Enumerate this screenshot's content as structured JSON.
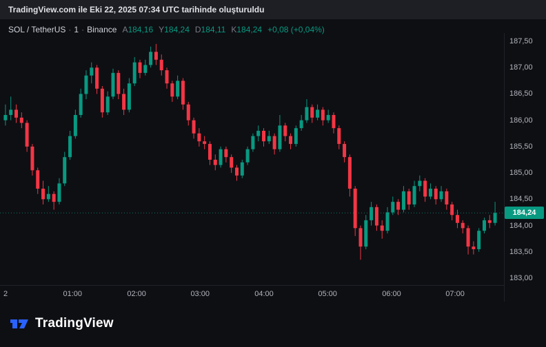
{
  "attribution": {
    "text": "TradingView.com ile Eki 22, 2025 07:34 UTC tarihinde oluşturuldu"
  },
  "header": {
    "symbol": "SOL / TetherUS",
    "separator": "·",
    "interval": "1",
    "exchange": "Binance",
    "ohlc": [
      {
        "key": "A",
        "value": "184,16"
      },
      {
        "key": "Y",
        "value": "184,24"
      },
      {
        "key": "D",
        "value": "184,11"
      },
      {
        "key": "K",
        "value": "184,24"
      }
    ],
    "change": "+0,08 (+0,04%)"
  },
  "footer": {
    "brand": "TradingView"
  },
  "colors": {
    "up": "#089981",
    "down": "#F23645",
    "axis_text": "#B2B5BE",
    "badge_bg": "#089981",
    "accent_blue": "#2962FF"
  },
  "chart_data": {
    "type": "candlestick",
    "title": "SOL / TetherUS · 1 · Binance",
    "symbol": "SOL/USDT",
    "exchange": "Binance",
    "interval": "1 minute (shown aggregated ~5m per candle)",
    "grid": false,
    "ylim": [
      183.0,
      187.5
    ],
    "price_ticks": [
      "187,50",
      "187,00",
      "186,50",
      "186,00",
      "185,50",
      "185,00",
      "184,50",
      "184,00",
      "183,50",
      "183,00"
    ],
    "price_tick_values": [
      187.5,
      187.0,
      186.5,
      186.0,
      185.5,
      185.0,
      184.5,
      184.0,
      183.5,
      183.0
    ],
    "time_ticks": [
      {
        "label": "2",
        "pos": 0.011
      },
      {
        "label": "01:00",
        "pos": 0.144
      },
      {
        "label": "02:00",
        "pos": 0.271
      },
      {
        "label": "03:00",
        "pos": 0.397
      },
      {
        "label": "04:00",
        "pos": 0.524
      },
      {
        "label": "05:00",
        "pos": 0.65
      },
      {
        "label": "06:00",
        "pos": 0.777
      },
      {
        "label": "07:00",
        "pos": 0.903
      }
    ],
    "last_price": 184.24,
    "last_price_label": "184,24",
    "candles": [
      [
        186.0,
        186.3,
        185.9,
        186.1
      ],
      [
        186.1,
        186.45,
        186.0,
        186.2
      ],
      [
        186.2,
        186.3,
        185.95,
        186.05
      ],
      [
        186.05,
        186.15,
        185.85,
        185.95
      ],
      [
        185.95,
        186.0,
        185.4,
        185.5
      ],
      [
        185.5,
        185.55,
        184.95,
        185.05
      ],
      [
        185.05,
        185.1,
        184.6,
        184.7
      ],
      [
        184.7,
        184.85,
        184.4,
        184.5
      ],
      [
        184.5,
        184.75,
        184.45,
        184.6
      ],
      [
        184.6,
        184.65,
        184.3,
        184.45
      ],
      [
        184.45,
        184.9,
        184.4,
        184.8
      ],
      [
        184.8,
        185.4,
        184.75,
        185.3
      ],
      [
        185.3,
        185.8,
        185.25,
        185.7
      ],
      [
        185.7,
        186.2,
        185.65,
        186.1
      ],
      [
        186.1,
        186.6,
        186.05,
        186.5
      ],
      [
        186.5,
        186.95,
        186.4,
        186.85
      ],
      [
        186.85,
        187.1,
        186.7,
        187.0
      ],
      [
        187.0,
        187.05,
        186.5,
        186.6
      ],
      [
        186.6,
        186.65,
        186.05,
        186.15
      ],
      [
        186.15,
        186.55,
        186.1,
        186.45
      ],
      [
        186.45,
        186.98,
        186.4,
        186.9
      ],
      [
        186.9,
        186.95,
        186.4,
        186.5
      ],
      [
        186.5,
        186.6,
        186.1,
        186.2
      ],
      [
        186.2,
        186.8,
        186.15,
        186.7
      ],
      [
        186.7,
        187.2,
        186.65,
        187.1
      ],
      [
        187.1,
        187.15,
        186.8,
        186.9
      ],
      [
        186.9,
        187.15,
        186.85,
        187.05
      ],
      [
        187.05,
        187.4,
        187.0,
        187.3
      ],
      [
        187.3,
        187.45,
        187.05,
        187.15
      ],
      [
        187.15,
        187.25,
        186.85,
        186.95
      ],
      [
        186.95,
        187.0,
        186.6,
        186.7
      ],
      [
        186.7,
        186.75,
        186.35,
        186.45
      ],
      [
        186.45,
        186.85,
        186.4,
        186.75
      ],
      [
        186.75,
        186.8,
        186.2,
        186.3
      ],
      [
        186.3,
        186.35,
        185.9,
        186.0
      ],
      [
        186.0,
        186.05,
        185.65,
        185.75
      ],
      [
        185.75,
        185.85,
        185.5,
        185.6
      ],
      [
        185.6,
        185.7,
        185.45,
        185.55
      ],
      [
        185.55,
        185.6,
        185.15,
        185.25
      ],
      [
        185.25,
        185.35,
        185.05,
        185.15
      ],
      [
        185.15,
        185.5,
        185.1,
        185.45
      ],
      [
        185.45,
        185.5,
        185.2,
        185.3
      ],
      [
        185.3,
        185.35,
        185.0,
        185.1
      ],
      [
        185.1,
        185.15,
        184.85,
        184.95
      ],
      [
        184.95,
        185.25,
        184.9,
        185.2
      ],
      [
        185.2,
        185.5,
        185.15,
        185.45
      ],
      [
        185.45,
        185.75,
        185.4,
        185.7
      ],
      [
        185.7,
        185.9,
        185.6,
        185.8
      ],
      [
        185.8,
        185.85,
        185.5,
        185.6
      ],
      [
        185.6,
        185.8,
        185.55,
        185.7
      ],
      [
        185.7,
        185.75,
        185.35,
        185.45
      ],
      [
        185.45,
        186.1,
        185.4,
        185.9
      ],
      [
        185.9,
        185.95,
        185.6,
        185.7
      ],
      [
        185.7,
        185.75,
        185.45,
        185.55
      ],
      [
        185.55,
        185.9,
        185.5,
        185.85
      ],
      [
        185.85,
        186.1,
        185.8,
        186.0
      ],
      [
        186.0,
        186.4,
        185.95,
        186.25
      ],
      [
        186.25,
        186.3,
        185.95,
        186.05
      ],
      [
        186.05,
        186.3,
        186.0,
        186.2
      ],
      [
        186.2,
        186.25,
        185.9,
        186.0
      ],
      [
        186.0,
        186.2,
        185.95,
        186.1
      ],
      [
        186.1,
        186.15,
        185.75,
        185.85
      ],
      [
        185.85,
        185.9,
        185.45,
        185.55
      ],
      [
        185.55,
        185.6,
        185.2,
        185.3
      ],
      [
        185.3,
        185.35,
        184.55,
        184.7
      ],
      [
        184.7,
        184.75,
        183.8,
        183.95
      ],
      [
        183.95,
        184.0,
        183.35,
        183.6
      ],
      [
        183.6,
        184.2,
        183.55,
        184.1
      ],
      [
        184.1,
        184.45,
        184.0,
        184.35
      ],
      [
        184.35,
        184.4,
        183.9,
        184.0
      ],
      [
        184.0,
        184.1,
        183.75,
        183.9
      ],
      [
        183.9,
        184.35,
        183.85,
        184.25
      ],
      [
        184.25,
        184.55,
        184.2,
        184.45
      ],
      [
        184.45,
        184.5,
        184.2,
        184.3
      ],
      [
        184.3,
        184.75,
        184.25,
        184.65
      ],
      [
        184.65,
        184.7,
        184.3,
        184.4
      ],
      [
        184.4,
        184.85,
        184.35,
        184.75
      ],
      [
        184.75,
        184.95,
        184.65,
        184.85
      ],
      [
        184.85,
        184.9,
        184.45,
        184.55
      ],
      [
        184.55,
        184.8,
        184.5,
        184.7
      ],
      [
        184.7,
        184.75,
        184.4,
        184.5
      ],
      [
        184.5,
        184.75,
        184.45,
        184.65
      ],
      [
        184.65,
        184.7,
        184.3,
        184.4
      ],
      [
        184.4,
        184.45,
        184.1,
        184.2
      ],
      [
        184.2,
        184.3,
        183.95,
        184.05
      ],
      [
        184.05,
        184.1,
        183.85,
        183.95
      ],
      [
        183.95,
        184.0,
        183.45,
        183.6
      ],
      [
        183.6,
        183.7,
        183.45,
        183.55
      ],
      [
        183.55,
        183.95,
        183.5,
        183.9
      ],
      [
        183.9,
        184.15,
        183.85,
        184.1
      ],
      [
        184.1,
        184.2,
        183.95,
        184.05
      ],
      [
        184.05,
        184.45,
        184.0,
        184.24
      ]
    ]
  }
}
